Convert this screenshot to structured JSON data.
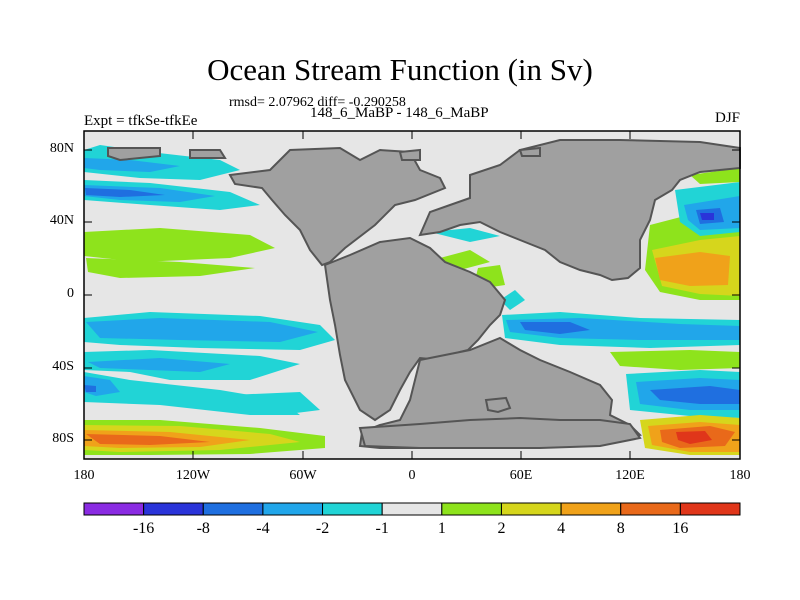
{
  "title": "Ocean Stream Function (in Sv)",
  "stats": "rmsd= 2.07962 diff= -0.290258",
  "left_label": "Expt = tfkSe-tfkEe",
  "center_label": "148_6_MaBP - 148_6_MaBP",
  "right_label": "DJF",
  "y_ticks": [
    "80N",
    "40N",
    "0",
    "40S",
    "80S"
  ],
  "x_ticks": [
    "180",
    "120W",
    "60W",
    "0",
    "60E",
    "120E",
    "180"
  ],
  "colorbar": {
    "tick_labels": [
      "-16",
      "-8",
      "-4",
      "-2",
      "-1",
      "1",
      "2",
      "4",
      "8",
      "16"
    ],
    "colors": [
      "#8a2be2",
      "#2a34d9",
      "#1f6fe0",
      "#21a6ea",
      "#21d4d6",
      "#e6e6e6",
      "#8ee31c",
      "#d6d61c",
      "#f0a21a",
      "#e9691a",
      "#e0361a"
    ]
  },
  "land_color": "#a0a0a0"
}
